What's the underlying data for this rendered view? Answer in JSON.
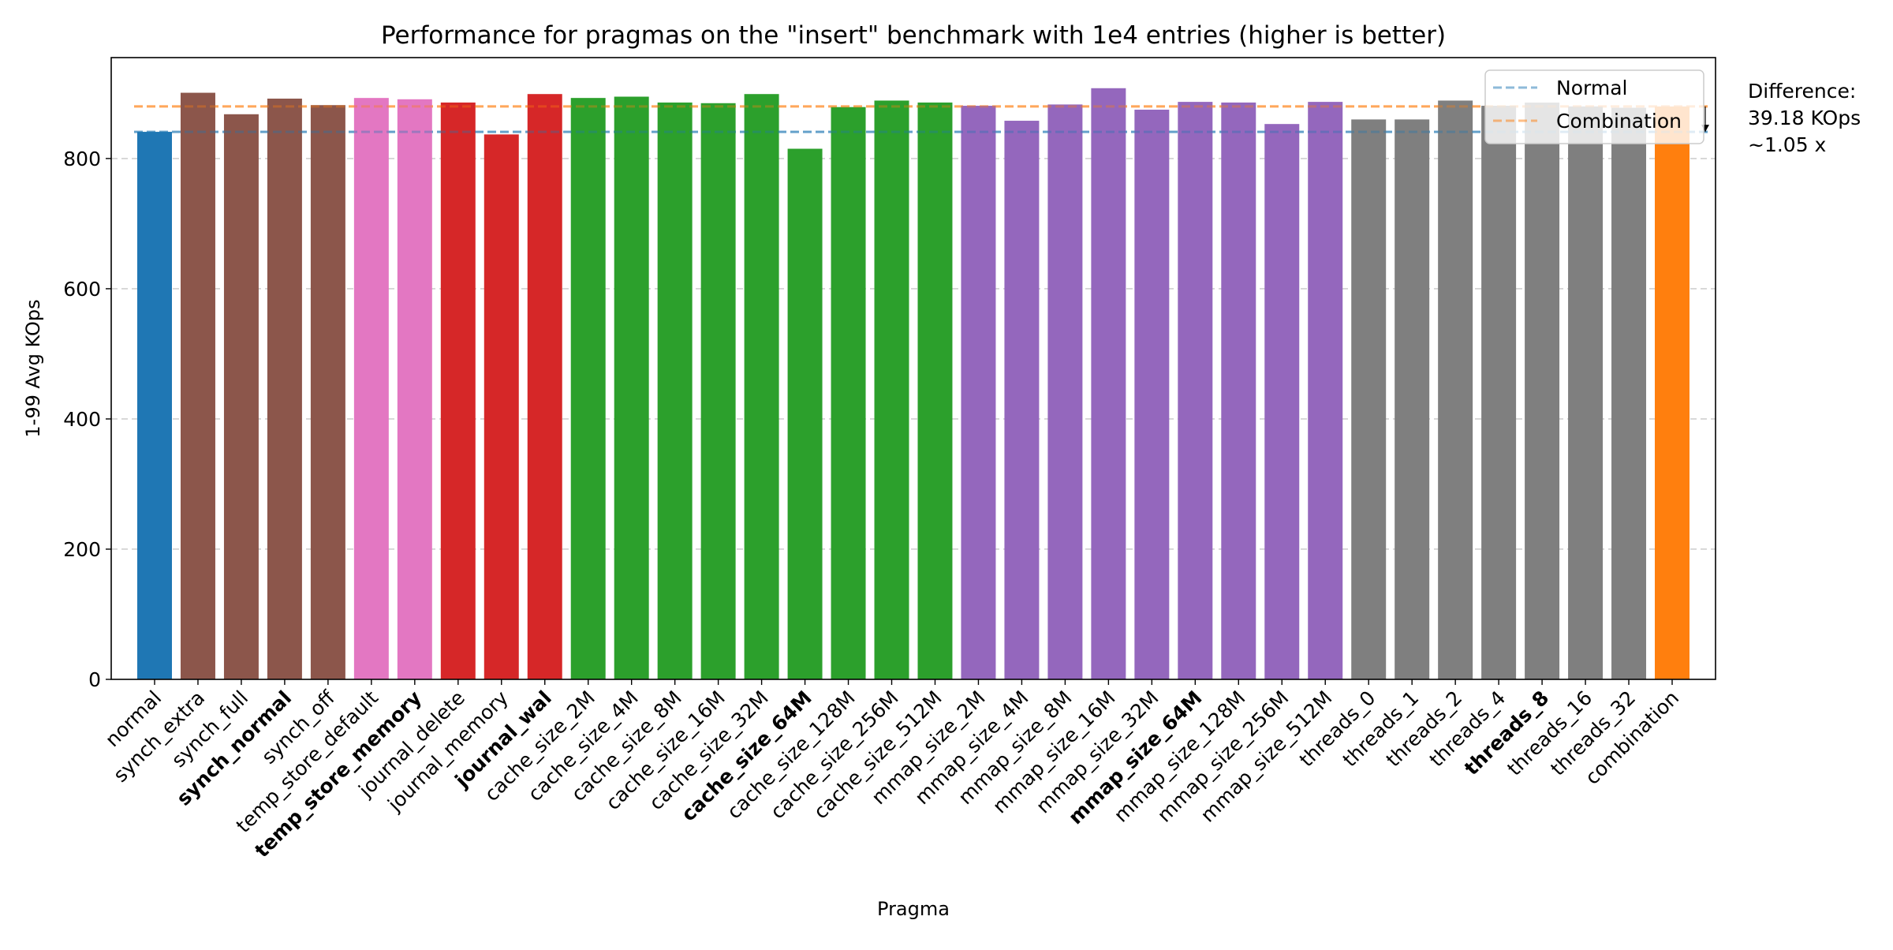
{
  "chart_data": {
    "type": "bar",
    "title": "Performance for pragmas on the \"insert\" benchmark with 1e4 entries (higher is better)",
    "xlabel": "Pragma",
    "ylabel": "1-99 Avg KOps",
    "ylim": [
      0,
      955
    ],
    "yticks": [
      0,
      200,
      400,
      600,
      800
    ],
    "grid": "y-dashed",
    "legend_position": "top-right",
    "categories": [
      "normal",
      "synch_extra",
      "synch_full",
      "synch_normal",
      "synch_off",
      "temp_store_default",
      "temp_store_memory",
      "journal_delete",
      "journal_memory",
      "journal_wal",
      "cache_size_2M",
      "cache_size_4M",
      "cache_size_8M",
      "cache_size_16M",
      "cache_size_32M",
      "cache_size_64M",
      "cache_size_128M",
      "cache_size_256M",
      "cache_size_512M",
      "mmap_size_2M",
      "mmap_size_4M",
      "mmap_size_8M",
      "mmap_size_16M",
      "mmap_size_32M",
      "mmap_size_64M",
      "mmap_size_128M",
      "mmap_size_256M",
      "mmap_size_512M",
      "threads_0",
      "threads_1",
      "threads_2",
      "threads_4",
      "threads_8",
      "threads_16",
      "threads_32",
      "combination"
    ],
    "values": [
      841,
      901,
      868,
      892,
      882,
      893,
      891,
      886,
      837,
      899,
      893,
      895,
      886,
      885,
      899,
      815,
      879,
      889,
      886,
      881,
      858,
      883,
      908,
      875,
      887,
      886,
      853,
      887,
      860,
      860,
      889,
      881,
      886,
      880,
      878,
      880
    ],
    "groups": [
      "normal",
      "synch",
      "synch",
      "synch",
      "synch",
      "temp_store",
      "temp_store",
      "journal",
      "journal",
      "journal",
      "cache",
      "cache",
      "cache",
      "cache",
      "cache",
      "cache",
      "cache",
      "cache",
      "cache",
      "mmap",
      "mmap",
      "mmap",
      "mmap",
      "mmap",
      "mmap",
      "mmap",
      "mmap",
      "mmap",
      "threads",
      "threads",
      "threads",
      "threads",
      "threads",
      "threads",
      "threads",
      "combination"
    ],
    "group_colors": {
      "normal": "#1f77b4",
      "synch": "#8c564b",
      "temp_store": "#e377c2",
      "journal": "#d62728",
      "cache": "#2ca02c",
      "mmap": "#9467bd",
      "threads": "#7f7f7f",
      "combination": "#ff7f0e"
    },
    "bold_categories": [
      "synch_normal",
      "temp_store_memory",
      "journal_wal",
      "cache_size_64M",
      "mmap_size_64M",
      "threads_8"
    ],
    "reference_lines": [
      {
        "name": "Normal",
        "value": 841,
        "color": "#1f77b4"
      },
      {
        "name": "Combination",
        "value": 880,
        "color": "#ff7f0e"
      }
    ],
    "annotation": {
      "lines": [
        "Difference:",
        "39.18 KOps",
        "~1.05 x"
      ]
    }
  }
}
